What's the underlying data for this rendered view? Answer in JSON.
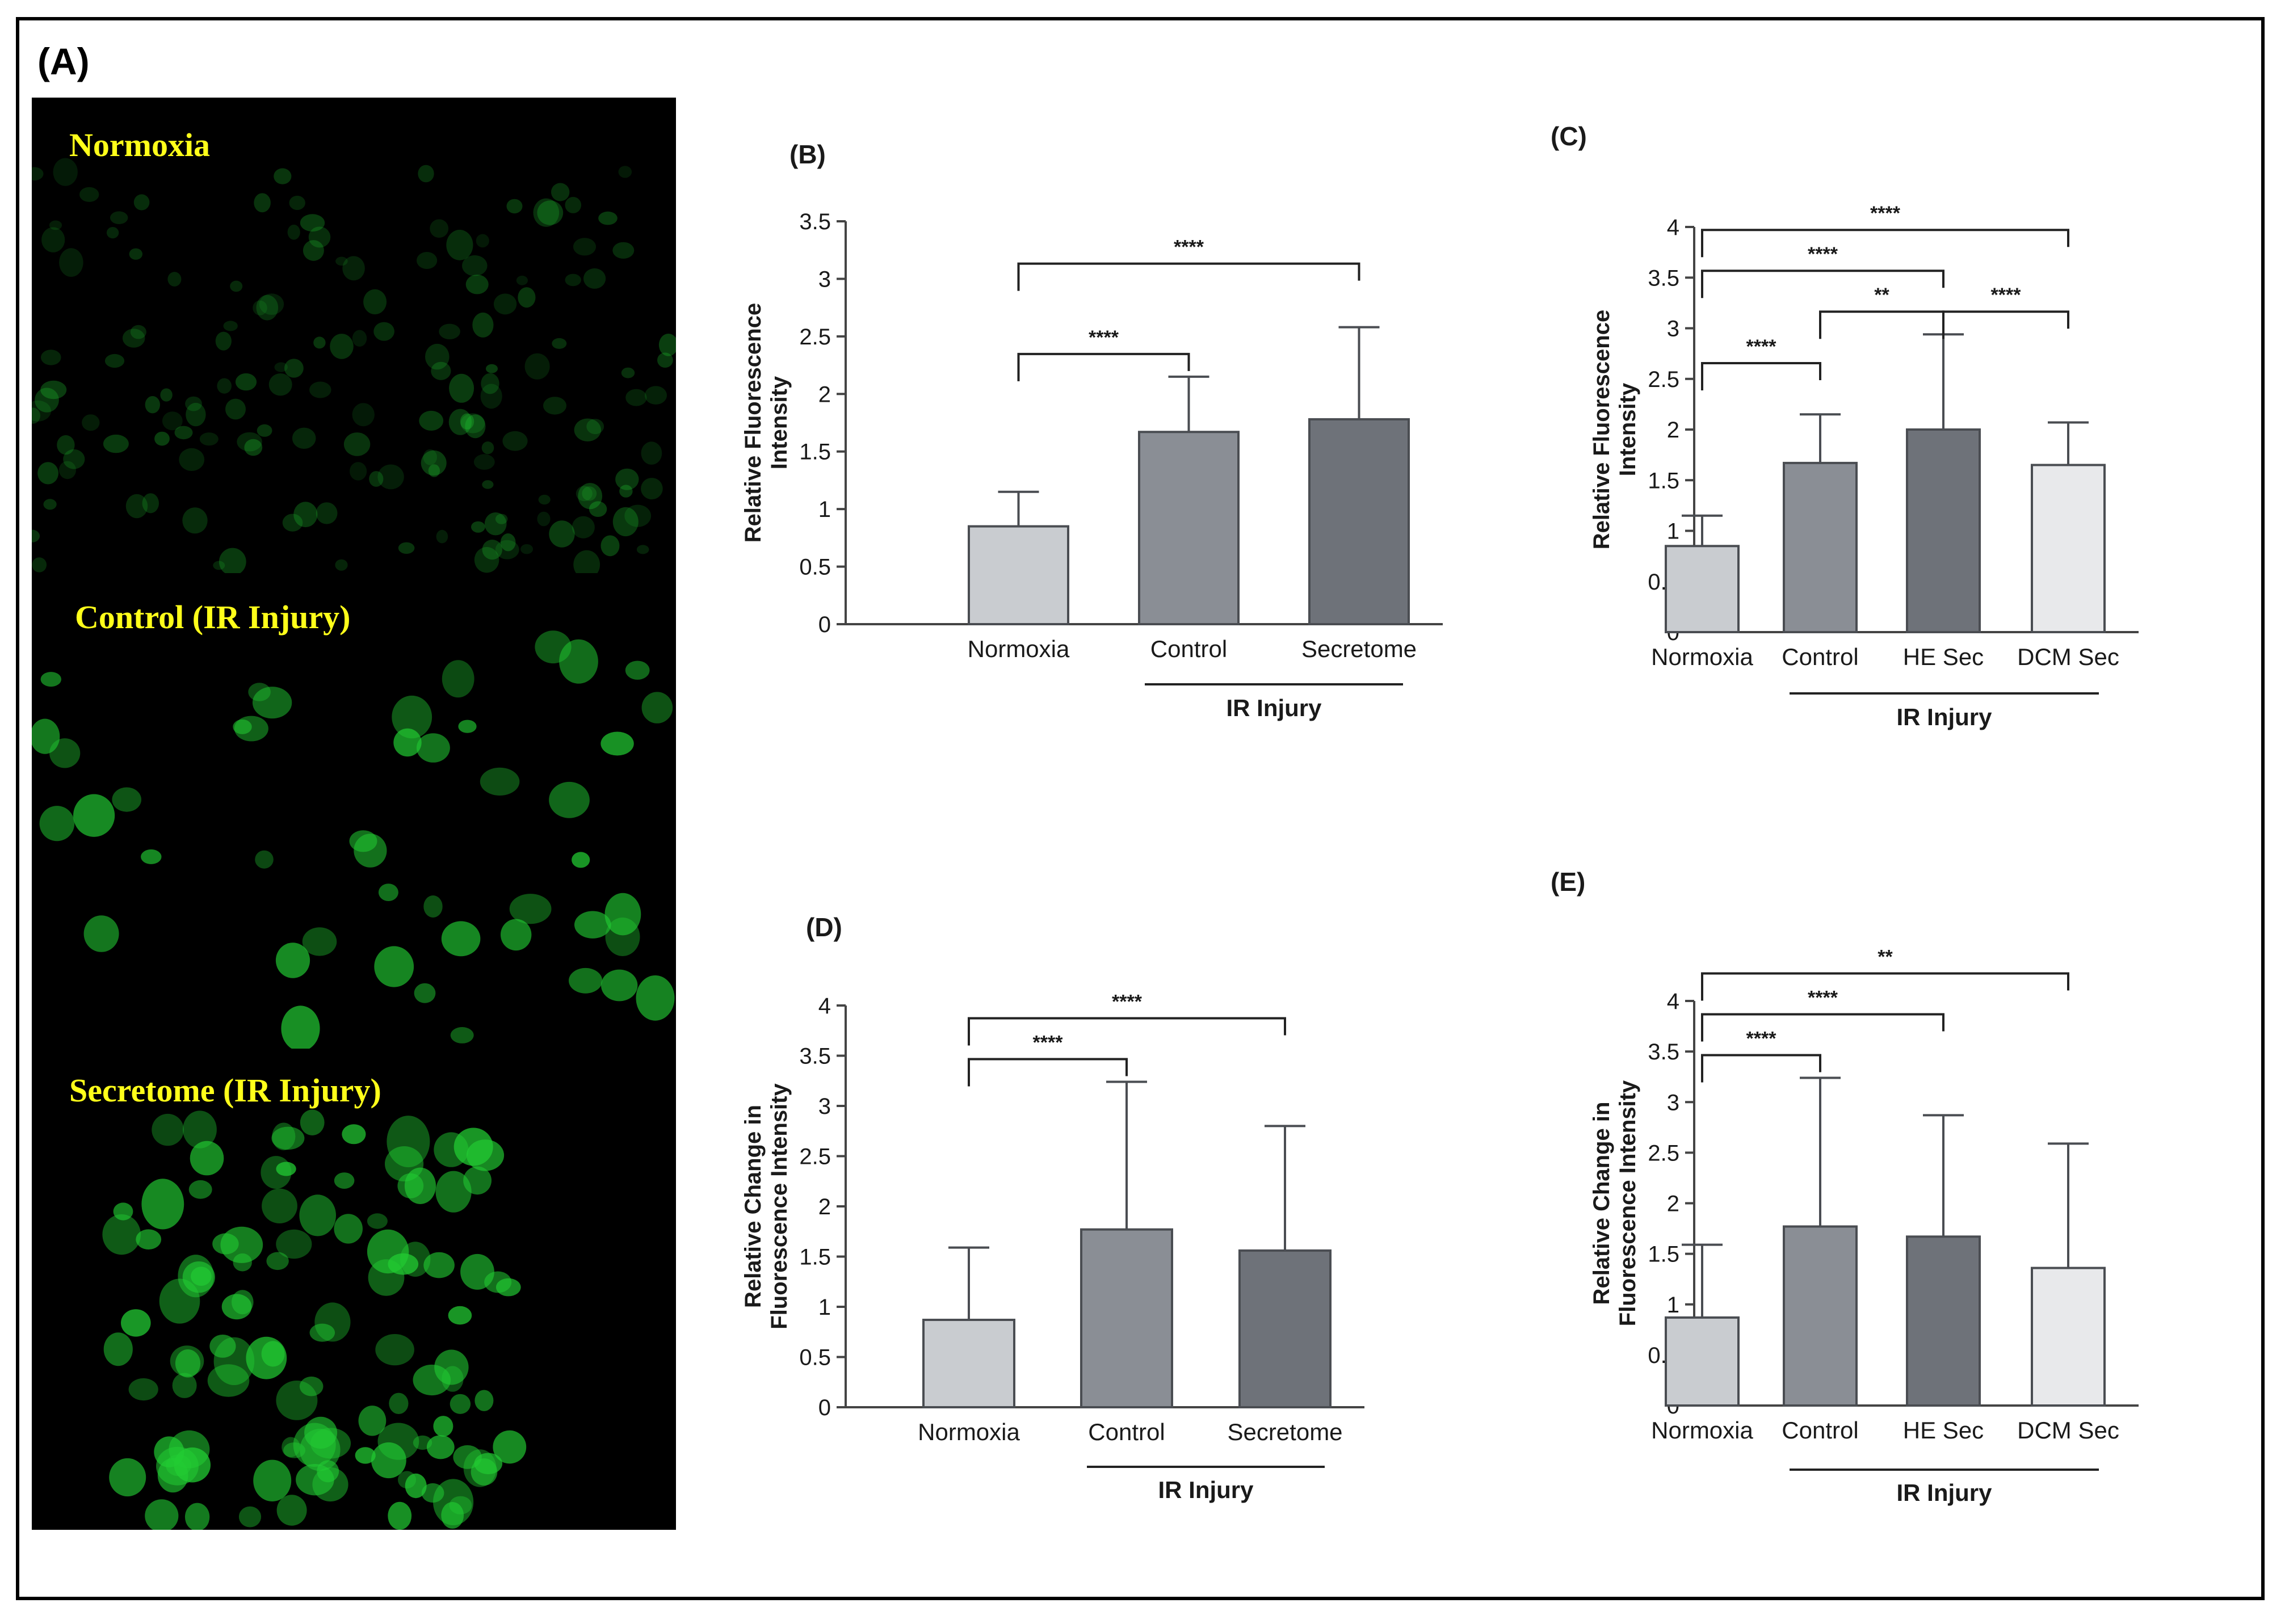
{
  "panel_a": {
    "label": "(A)",
    "images": [
      {
        "label": "Normoxia",
        "cell_density": "sparse"
      },
      {
        "label": "Control (IR Injury)",
        "cell_density": "medium"
      },
      {
        "label": "Secretome (IR Injury)",
        "cell_density": "dense"
      }
    ],
    "fluorescence_color": "#22cc33"
  },
  "chart_data": [
    {
      "panel": "(B)",
      "type": "bar",
      "categories": [
        "Normoxia",
        "Control",
        "Secretome"
      ],
      "values": [
        0.85,
        1.67,
        1.78
      ],
      "error": [
        0.3,
        0.48,
        0.8
      ],
      "colors": [
        "#c9ccd0",
        "#8a8e95",
        "#6e7279"
      ],
      "ylabel": [
        "Relative Fluorescence",
        "Intensity"
      ],
      "ylim": [
        0,
        3.5
      ],
      "yticks": [
        "0",
        "0.5",
        "1",
        "1.5",
        "2",
        "2.5",
        "3",
        "3.5"
      ],
      "group_label": "IR Injury",
      "group_span": [
        1,
        2
      ],
      "significance": [
        {
          "from": 0,
          "to": 1,
          "label": "****"
        },
        {
          "from": 0,
          "to": 2,
          "label": "****"
        }
      ]
    },
    {
      "panel": "(C)",
      "type": "bar",
      "categories": [
        "Normoxia",
        "Control",
        "HE Sec",
        "DCM Sec"
      ],
      "values": [
        0.85,
        1.67,
        2.0,
        1.65
      ],
      "error": [
        0.3,
        0.48,
        0.94,
        0.42
      ],
      "colors": [
        "#c9ccd0",
        "#8a8e95",
        "#6e7279",
        "#e8e9eb"
      ],
      "ylabel": [
        "Relative Fluorescence",
        "Intensity"
      ],
      "ylim": [
        0,
        4
      ],
      "yticks": [
        "0",
        "0.5",
        "1",
        "1.5",
        "2",
        "2.5",
        "3",
        "3.5",
        "4"
      ],
      "group_label": "IR Injury",
      "group_span": [
        1,
        3
      ],
      "significance": [
        {
          "from": 0,
          "to": 1,
          "label": "****"
        },
        {
          "from": 1,
          "to": 2,
          "label": "**"
        },
        {
          "from": 2,
          "to": 3,
          "label": "****"
        },
        {
          "from": 0,
          "to": 2,
          "label": "****"
        },
        {
          "from": 0,
          "to": 3,
          "label": "****"
        }
      ]
    },
    {
      "panel": "(D)",
      "type": "bar",
      "categories": [
        "Normoxia",
        "Control",
        "Secretome"
      ],
      "values": [
        0.87,
        1.77,
        1.56
      ],
      "error": [
        0.72,
        1.47,
        1.24
      ],
      "colors": [
        "#c9ccd0",
        "#8a8e95",
        "#6e7279"
      ],
      "ylabel": [
        "Relative Change in",
        "Fluorescence Intensity"
      ],
      "ylim": [
        0,
        4
      ],
      "yticks": [
        "0",
        "0.5",
        "1",
        "1.5",
        "2",
        "2.5",
        "3",
        "3.5",
        "4"
      ],
      "group_label": "IR Injury",
      "group_span": [
        1,
        2
      ],
      "significance": [
        {
          "from": 0,
          "to": 1,
          "label": "****"
        },
        {
          "from": 0,
          "to": 2,
          "label": "****"
        }
      ]
    },
    {
      "panel": "(E)",
      "type": "bar",
      "categories": [
        "Normoxia",
        "Control",
        "HE Sec",
        "DCM Sec"
      ],
      "values": [
        0.87,
        1.77,
        1.67,
        1.36
      ],
      "error": [
        0.72,
        1.47,
        1.2,
        1.23
      ],
      "colors": [
        "#c9ccd0",
        "#8a8e95",
        "#6e7279",
        "#e8e9eb"
      ],
      "ylabel": [
        "Relative Change in",
        "Fluorescence Intensity"
      ],
      "ylim": [
        0,
        4
      ],
      "yticks": [
        "0",
        "0.5",
        "1",
        "1.5",
        "2",
        "2.5",
        "3",
        "3.5",
        "4"
      ],
      "group_label": "IR Injury",
      "group_span": [
        1,
        3
      ],
      "significance": [
        {
          "from": 0,
          "to": 1,
          "label": "****"
        },
        {
          "from": 0,
          "to": 2,
          "label": "****"
        },
        {
          "from": 0,
          "to": 3,
          "label": "**"
        }
      ]
    }
  ]
}
